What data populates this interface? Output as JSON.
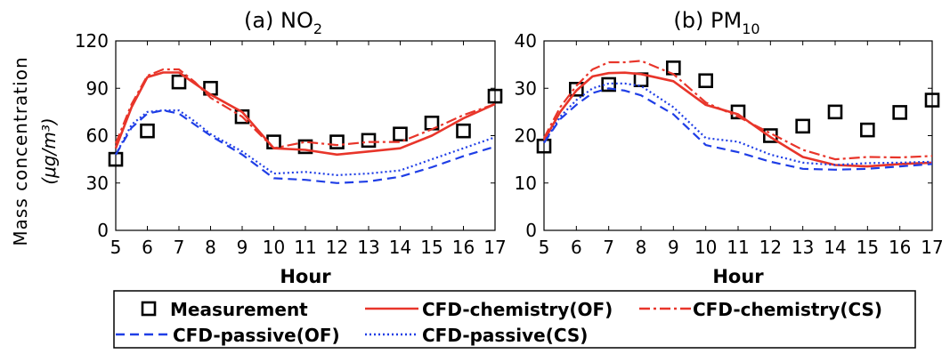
{
  "figure": {
    "ylabel": "Mass concentration",
    "units_label": "(μg/m³)",
    "legend": {
      "measurement": "Measurement",
      "chem_of": "CFD-chemistry(OF)",
      "chem_cs": "CFD-chemistry(CS)",
      "pass_of": "CFD-passive(OF)",
      "pass_cs": "CFD-passive(CS)"
    }
  },
  "colors": {
    "chemistry": "#e8352a",
    "passive": "#1f3ee6",
    "measurement": "#000000"
  },
  "chart_data": [
    {
      "type": "line",
      "title": "(a) NO2",
      "title_main": "(a) NO",
      "title_sub": "2",
      "xlabel": "Hour",
      "ylabel": "Mass concentration (μg/m³)",
      "xlim": [
        5,
        17
      ],
      "ylim": [
        0,
        120
      ],
      "xticks": [
        5,
        6,
        7,
        8,
        9,
        10,
        11,
        12,
        13,
        14,
        15,
        16,
        17
      ],
      "yticks": [
        0,
        30,
        60,
        90,
        120
      ],
      "grid": false,
      "series": [
        {
          "name": "Measurement",
          "style": "marker-square",
          "x": [
            5,
            6,
            7,
            8,
            9,
            10,
            11,
            12,
            13,
            14,
            15,
            16,
            17
          ],
          "y": [
            45,
            63,
            94,
            90,
            72,
            56,
            53,
            56,
            57,
            61,
            68,
            63,
            85
          ]
        },
        {
          "name": "CFD-chemistry(OF)",
          "style": "solid-red",
          "x": [
            5,
            5.5,
            6,
            6.5,
            7,
            7.5,
            8,
            9,
            10,
            11,
            12,
            13,
            14,
            15,
            16,
            17
          ],
          "y": [
            52,
            78,
            97,
            100,
            100,
            93,
            86,
            75,
            52,
            51,
            48,
            50,
            52,
            60,
            71,
            80
          ]
        },
        {
          "name": "CFD-chemistry(CS)",
          "style": "dashdot-red",
          "x": [
            5,
            5.5,
            6,
            6.5,
            7,
            7.5,
            8,
            9,
            10,
            11,
            12,
            13,
            14,
            15,
            16,
            17
          ],
          "y": [
            55,
            80,
            98,
            102,
            102,
            94,
            84,
            72,
            52,
            56,
            54,
            56,
            56,
            64,
            73,
            80
          ]
        },
        {
          "name": "CFD-passive(OF)",
          "style": "dashed-blue",
          "x": [
            5,
            5.5,
            6,
            6.5,
            7,
            7.5,
            8,
            9,
            10,
            11,
            12,
            13,
            14,
            15,
            16,
            17
          ],
          "y": [
            48,
            65,
            74,
            76,
            74,
            67,
            60,
            48,
            33,
            32,
            30,
            31,
            34,
            40,
            47,
            53
          ]
        },
        {
          "name": "CFD-passive(CS)",
          "style": "dotted-blue",
          "x": [
            5,
            5.5,
            6,
            6.5,
            7,
            7.5,
            8,
            9,
            10,
            11,
            12,
            13,
            14,
            15,
            16,
            17
          ],
          "y": [
            48,
            67,
            75,
            76,
            76,
            69,
            61,
            50,
            36,
            37,
            35,
            36,
            38,
            45,
            52,
            59
          ]
        }
      ]
    },
    {
      "type": "line",
      "title": "(b) PM10",
      "title_main": "(b) PM",
      "title_sub": "10",
      "xlabel": "Hour",
      "ylabel": "Mass concentration (μg/m³)",
      "xlim": [
        5,
        17
      ],
      "ylim": [
        0,
        40
      ],
      "xticks": [
        5,
        6,
        7,
        8,
        9,
        10,
        11,
        12,
        13,
        14,
        15,
        16,
        17
      ],
      "yticks": [
        0,
        10,
        20,
        30,
        40
      ],
      "grid": false,
      "series": [
        {
          "name": "Measurement",
          "style": "marker-square",
          "x": [
            5,
            6,
            7,
            8,
            9,
            10,
            11,
            12,
            13,
            14,
            15,
            16,
            17
          ],
          "y": [
            17.8,
            29.8,
            30.8,
            31.8,
            34.3,
            31.6,
            25,
            20,
            22,
            25,
            21.2,
            24.9,
            27.5
          ]
        },
        {
          "name": "CFD-chemistry(OF)",
          "style": "solid-red",
          "x": [
            5,
            5.5,
            6,
            6.5,
            7,
            7.5,
            8,
            9,
            10,
            11,
            12,
            13,
            14,
            15,
            16,
            17
          ],
          "y": [
            19,
            25,
            29.5,
            32.5,
            33.2,
            33.3,
            33,
            31.5,
            26.5,
            24.5,
            19.7,
            15.5,
            13.8,
            13.5,
            14,
            14.3
          ]
        },
        {
          "name": "CFD-chemistry(CS)",
          "style": "dashdot-red",
          "x": [
            5,
            5.5,
            6,
            6.5,
            7,
            7.5,
            8,
            9,
            10,
            11,
            12,
            13,
            14,
            15,
            16,
            17
          ],
          "y": [
            19.5,
            26,
            30.5,
            34,
            35.5,
            35.5,
            35.8,
            33,
            27,
            24,
            20.5,
            17,
            15,
            15.5,
            15.4,
            15.7
          ]
        },
        {
          "name": "CFD-passive(OF)",
          "style": "dashed-blue",
          "x": [
            5,
            5.5,
            6,
            6.5,
            7,
            7.5,
            8,
            9,
            10,
            11,
            12,
            13,
            14,
            15,
            16,
            17
          ],
          "y": [
            18.5,
            23.5,
            26.5,
            29,
            30,
            29.5,
            28.5,
            24.5,
            18,
            16.5,
            14.5,
            13,
            12.8,
            13,
            13.5,
            14
          ]
        },
        {
          "name": "CFD-passive(CS)",
          "style": "dotted-blue",
          "x": [
            5,
            5.5,
            6,
            6.5,
            7,
            7.5,
            8,
            9,
            10,
            11,
            12,
            13,
            14,
            15,
            16,
            17
          ],
          "y": [
            18.5,
            24,
            27.5,
            30,
            31,
            31,
            30.5,
            26,
            19.5,
            18.7,
            16,
            14.3,
            13.8,
            14.2,
            14.3,
            14.5
          ]
        }
      ]
    }
  ]
}
